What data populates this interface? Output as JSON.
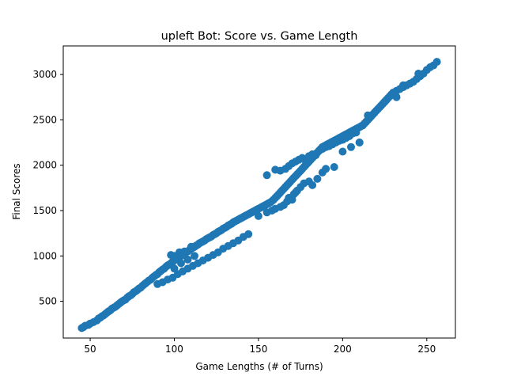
{
  "chart_data": {
    "type": "scatter",
    "title": "upleft Bot: Score vs. Game Length",
    "xlabel": "Game Lengths (# of Turns)",
    "ylabel": "Final Scores",
    "xlim": [
      34,
      267
    ],
    "ylim": [
      95,
      3315
    ],
    "xticks": [
      50,
      100,
      150,
      200,
      250
    ],
    "yticks": [
      500,
      1000,
      1500,
      2000,
      2500,
      3000
    ],
    "grid": false,
    "legend": "none",
    "marker_color": "#1f77b4",
    "series": [
      {
        "x": [
          45,
          46,
          47,
          49,
          50,
          52,
          54,
          55,
          56,
          57,
          58,
          59,
          60,
          61,
          62,
          63,
          64,
          65,
          66,
          67,
          68,
          69,
          70,
          71,
          72,
          73,
          74,
          75,
          76,
          77,
          78,
          79,
          80,
          81,
          82,
          83,
          84,
          85,
          86,
          87,
          88,
          89,
          90,
          91,
          92,
          93,
          94,
          95,
          96,
          97,
          98,
          99,
          100,
          100,
          101,
          102,
          103,
          104,
          104,
          105,
          106,
          107,
          108,
          108,
          109,
          110,
          111,
          112,
          112,
          113,
          114,
          115,
          116,
          117,
          118,
          119,
          120,
          121,
          122,
          123,
          124,
          125,
          126,
          127,
          128,
          129,
          130,
          131,
          132,
          133,
          134,
          135,
          136,
          137,
          138,
          139,
          140,
          141,
          142,
          143,
          144,
          145,
          146,
          147,
          148,
          149,
          150,
          151,
          152,
          153,
          154,
          155,
          156,
          157,
          158,
          159,
          160,
          161,
          162,
          163,
          164,
          165,
          166,
          167,
          168,
          169,
          170,
          171,
          172,
          173,
          174,
          175,
          176,
          177,
          178,
          179,
          180,
          181,
          182,
          183,
          184,
          185,
          186,
          187,
          188,
          189,
          190,
          191,
          192,
          193,
          194,
          195,
          196,
          197,
          198,
          199,
          200,
          201,
          202,
          203,
          204,
          205,
          206,
          207,
          208,
          209,
          210,
          211,
          212,
          213,
          214,
          215,
          216,
          217,
          218,
          219,
          220,
          221,
          222,
          223,
          224,
          225,
          226,
          227,
          228,
          229,
          230,
          232,
          234,
          236,
          238,
          240,
          242,
          244,
          246,
          248,
          250,
          252,
          254,
          256,
          98,
          100,
          103,
          106,
          110,
          155,
          160,
          163,
          166,
          168,
          170,
          172,
          174,
          176,
          178,
          180,
          182,
          184,
          186,
          188,
          190,
          192,
          194,
          196,
          198,
          200,
          202,
          204,
          206,
          208,
          210,
          215,
          225,
          232,
          236,
          240,
          245,
          90,
          93,
          96,
          99,
          102,
          105,
          108,
          111,
          114,
          117,
          120,
          123,
          126,
          129,
          132,
          135,
          138,
          141,
          144
        ],
        "y": [
          205,
          215,
          230,
          240,
          255,
          270,
          290,
          310,
          320,
          335,
          345,
          360,
          375,
          390,
          400,
          420,
          430,
          440,
          455,
          470,
          485,
          500,
          510,
          520,
          540,
          555,
          565,
          580,
          600,
          610,
          625,
          640,
          650,
          670,
          685,
          700,
          715,
          730,
          740,
          760,
          775,
          790,
          800,
          820,
          835,
          850,
          860,
          880,
          895,
          905,
          920,
          935,
          950,
          860,
          965,
          975,
          990,
          1000,
          920,
          1010,
          1025,
          1040,
          1050,
          960,
          1065,
          1080,
          1090,
          1100,
          1000,
          1115,
          1125,
          1140,
          1150,
          1160,
          1170,
          1185,
          1195,
          1205,
          1215,
          1230,
          1240,
          1250,
          1265,
          1275,
          1285,
          1300,
          1310,
          1320,
          1335,
          1345,
          1355,
          1370,
          1380,
          1390,
          1400,
          1410,
          1420,
          1430,
          1440,
          1450,
          1460,
          1470,
          1480,
          1490,
          1500,
          1510,
          1520,
          1530,
          1540,
          1550,
          1560,
          1570,
          1580,
          1590,
          1605,
          1620,
          1640,
          1660,
          1680,
          1700,
          1720,
          1740,
          1760,
          1780,
          1800,
          1820,
          1840,
          1860,
          1880,
          1900,
          1920,
          1940,
          1960,
          1980,
          2000,
          2020,
          2040,
          2060,
          2080,
          2100,
          2120,
          2140,
          2160,
          2180,
          2200,
          2210,
          2220,
          2230,
          2240,
          2250,
          2260,
          2270,
          2280,
          2290,
          2300,
          2310,
          2320,
          2330,
          2340,
          2350,
          2360,
          2370,
          2380,
          2390,
          2400,
          2410,
          2420,
          2430,
          2440,
          2460,
          2480,
          2500,
          2520,
          2540,
          2560,
          2580,
          2600,
          2620,
          2640,
          2660,
          2680,
          2700,
          2720,
          2740,
          2760,
          2780,
          2800,
          2820,
          2840,
          2860,
          2880,
          2900,
          2920,
          2950,
          2980,
          3010,
          3050,
          3080,
          3100,
          3140,
          1010,
          1000,
          1040,
          1050,
          1100,
          1890,
          1950,
          1940,
          1960,
          1990,
          2020,
          2040,
          2060,
          2080,
          2050,
          2100,
          2120,
          2110,
          2160,
          2180,
          2200,
          2210,
          2230,
          2250,
          2270,
          2280,
          2300,
          2320,
          2350,
          2360,
          2250,
          2550,
          2700,
          2750,
          2880,
          2900,
          3010,
          690,
          710,
          740,
          760,
          800,
          830,
          860,
          890,
          920,
          950,
          980,
          1010,
          1040,
          1080,
          1110,
          1140,
          1170,
          1210,
          1240
        ]
      },
      {
        "x": [
          150,
          155,
          158,
          160,
          163,
          165,
          167,
          168,
          170,
          171,
          172,
          173,
          175,
          177,
          180,
          182,
          185,
          188,
          190,
          195,
          200,
          205,
          210
        ],
        "y": [
          1440,
          1480,
          1500,
          1520,
          1540,
          1560,
          1600,
          1640,
          1620,
          1680,
          1700,
          1720,
          1760,
          1800,
          1820,
          1780,
          1850,
          1920,
          1960,
          1980,
          2150,
          2200,
          2250
        ]
      }
    ]
  }
}
